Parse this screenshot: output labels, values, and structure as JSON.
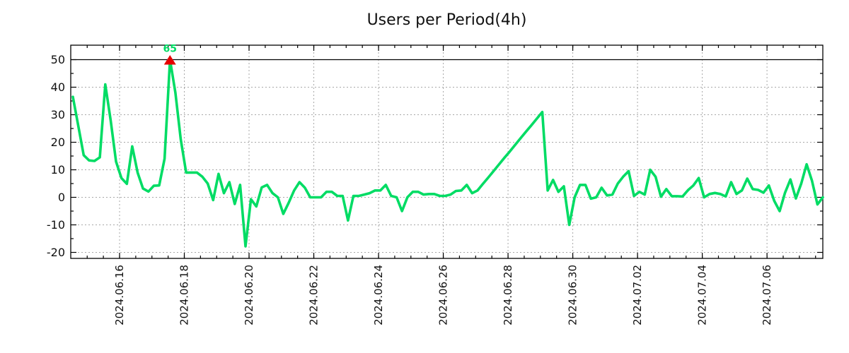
{
  "chart_data": {
    "type": "line",
    "title": "Users per Period(4h)",
    "period": "4h",
    "grid": true,
    "legend": "none",
    "colors": {
      "line": "#00dc64",
      "marker": "#e60000",
      "annotation_text": "#00dc64",
      "grid": "#a8a8a8",
      "axis": "#000000",
      "background": "#ffffff"
    },
    "y_axis": {
      "ticks": [
        -20,
        -10,
        0,
        10,
        20,
        30,
        40,
        50
      ],
      "minor_ticks": [
        -15,
        -5,
        5,
        15,
        25,
        35,
        45
      ],
      "shown_range": [
        -22.3,
        55.3
      ],
      "cap_line_at": 50
    },
    "x_axis": {
      "tick_labels": [
        "2024.06.16",
        "2024.06.18",
        "2024.06.20",
        "2024.06.22",
        "2024.06.24",
        "2024.06.26",
        "2024.06.28",
        "2024.06.30",
        "2024.07.02",
        "2024.07.04",
        "2024.07.06"
      ],
      "label_rotation_deg": -90,
      "first_major_index": 8.654,
      "major_step_indices": 12,
      "minor_step_indices": 3,
      "minor_first_index": 2.654
    },
    "annotation": {
      "text": "65",
      "value": 65,
      "index": 18,
      "marker": "triangle-up",
      "note": "peak clipped at y=50 cap line"
    },
    "series": [
      {
        "name": "users",
        "values": [
          36.5,
          26,
          15.3,
          13.4,
          13.2,
          14.5,
          41,
          28,
          13,
          7,
          4.9,
          18.5,
          9,
          3.2,
          2.1,
          4.2,
          4.3,
          14,
          65,
          38,
          21,
          9,
          9,
          9,
          7.5,
          5,
          -1,
          8.5,
          1.5,
          5.5,
          -2.4,
          4.5,
          -17.8,
          -0.7,
          -3.3,
          3.6,
          4.5,
          1.5,
          0,
          -6,
          -2,
          2.5,
          5.5,
          3.5,
          0,
          0,
          0,
          2,
          2,
          0.5,
          0.5,
          -8.4,
          0.5,
          0.5,
          1,
          1.5,
          2.5,
          2.5,
          4.5,
          0.5,
          0,
          -5,
          0,
          2,
          2,
          1,
          1.2,
          1.2,
          0.5,
          0.5,
          1,
          2.3,
          2.5,
          4.5,
          1.5,
          2.5,
          4.9,
          7.2,
          9.6,
          12,
          14.4,
          16.7,
          19.1,
          21.5,
          23.9,
          26.2,
          28.6,
          31,
          2.5,
          6.3,
          2,
          4,
          -10,
          0,
          4.5,
          4.5,
          -0.5,
          0,
          3.5,
          0.7,
          1,
          5,
          7.5,
          9.5,
          0.5,
          2,
          1,
          10,
          7.5,
          0.2,
          3,
          0.4,
          0.4,
          0.3,
          2.6,
          4.3,
          7,
          0,
          1.2,
          1.6,
          1.2,
          0.3,
          5.5,
          1.2,
          2.5,
          6.8,
          3,
          2.7,
          1.7,
          4.3,
          -1.3,
          -5,
          1.7,
          6.5,
          -0.4,
          5,
          12,
          6,
          -2.6,
          0
        ]
      }
    ]
  }
}
